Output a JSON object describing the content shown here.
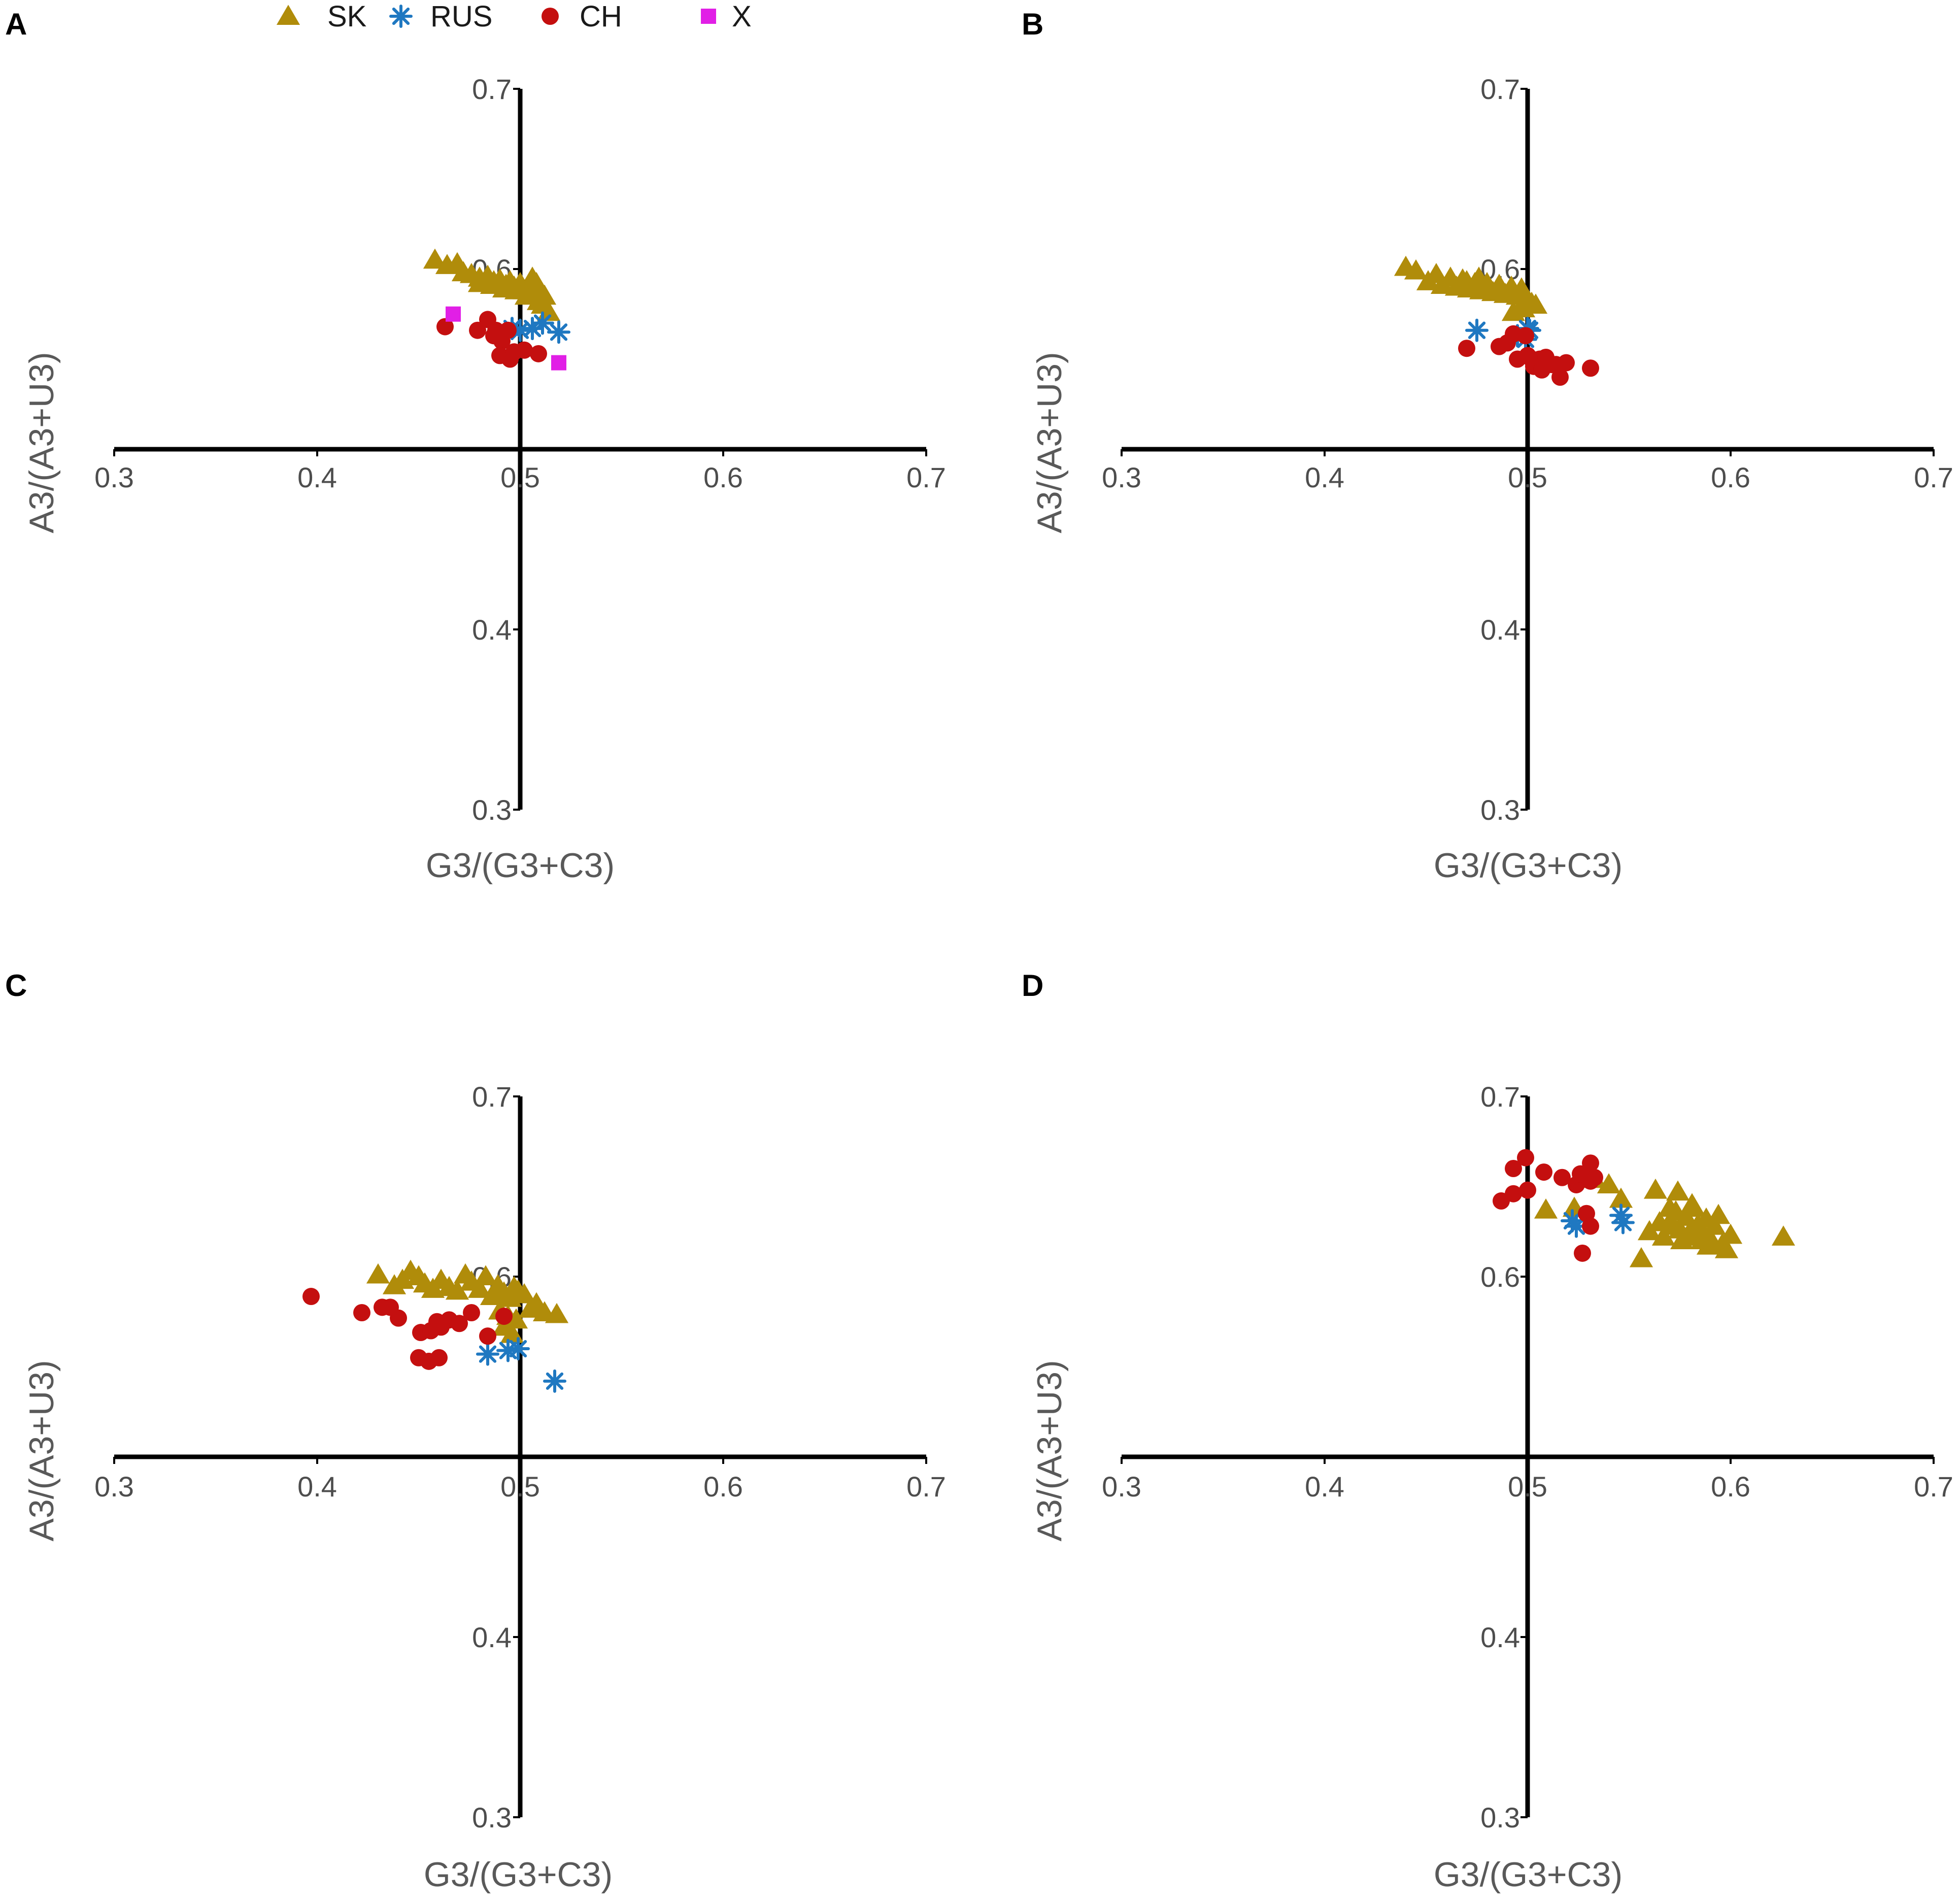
{
  "legend": [
    {
      "key": "SK",
      "label": "SK",
      "color": "#B08C0A",
      "shape": "triangle"
    },
    {
      "key": "RUS",
      "label": "RUS",
      "color": "#1F78C1",
      "shape": "asterisk"
    },
    {
      "key": "CH",
      "label": "CH",
      "color": "#C40F0F",
      "shape": "circle"
    },
    {
      "key": "X",
      "label": "X",
      "color": "#E11FE6",
      "shape": "square"
    }
  ],
  "chart_data": [
    {
      "panel": "A",
      "type": "scatter",
      "xlabel": "G3/(G3+C3)",
      "ylabel": "A3/(A3+U3)",
      "xlim": [
        0.3,
        0.7
      ],
      "ylim": [
        0.3,
        0.7
      ],
      "xticks": [
        "0.3",
        "0.4",
        "0.5",
        "0.6",
        "0.7"
      ],
      "yticks": [
        "0.3",
        "0.4",
        "0.6",
        "0.7"
      ],
      "axes_cross": [
        0.5,
        0.5
      ],
      "series": [
        {
          "name": "SK",
          "points": [
            [
              0.458,
              0.605
            ],
            [
              0.464,
              0.602
            ],
            [
              0.469,
              0.603
            ],
            [
              0.472,
              0.598
            ],
            [
              0.476,
              0.597
            ],
            [
              0.48,
              0.595
            ],
            [
              0.484,
              0.596
            ],
            [
              0.487,
              0.593
            ],
            [
              0.49,
              0.594
            ],
            [
              0.493,
              0.591
            ],
            [
              0.495,
              0.593
            ],
            [
              0.497,
              0.59
            ],
            [
              0.5,
              0.592
            ],
            [
              0.502,
              0.588
            ],
            [
              0.504,
              0.59
            ],
            [
              0.506,
              0.595
            ],
            [
              0.508,
              0.592
            ],
            [
              0.51,
              0.588
            ],
            [
              0.512,
              0.585
            ],
            [
              0.507,
              0.586
            ],
            [
              0.498,
              0.588
            ],
            [
              0.492,
              0.589
            ],
            [
              0.486,
              0.591
            ],
            [
              0.48,
              0.592
            ],
            [
              0.511,
              0.58
            ],
            [
              0.514,
              0.576
            ],
            [
              0.509,
              0.582
            ],
            [
              0.503,
              0.585
            ]
          ]
        },
        {
          "name": "RUS",
          "points": [
            [
              0.496,
              0.567
            ],
            [
              0.5,
              0.566
            ],
            [
              0.506,
              0.567
            ],
            [
              0.511,
              0.57
            ],
            [
              0.519,
              0.565
            ]
          ]
        },
        {
          "name": "CH",
          "points": [
            [
              0.463,
              0.568
            ],
            [
              0.479,
              0.566
            ],
            [
              0.484,
              0.572
            ],
            [
              0.488,
              0.566
            ],
            [
              0.491,
              0.56
            ],
            [
              0.494,
              0.566
            ],
            [
              0.49,
              0.552
            ],
            [
              0.495,
              0.55
            ],
            [
              0.497,
              0.554
            ],
            [
              0.502,
              0.555
            ],
            [
              0.487,
              0.563
            ],
            [
              0.509,
              0.553
            ]
          ]
        },
        {
          "name": "X",
          "points": [
            [
              0.467,
              0.575
            ],
            [
              0.519,
              0.548
            ]
          ]
        }
      ]
    },
    {
      "panel": "B",
      "type": "scatter",
      "xlabel": "G3/(G3+C3)",
      "ylabel": "A3/(A3+U3)",
      "xlim": [
        0.3,
        0.7
      ],
      "ylim": [
        0.3,
        0.7
      ],
      "xticks": [
        "0.3",
        "0.4",
        "0.5",
        "0.6",
        "0.7"
      ],
      "yticks": [
        "0.3",
        "0.4",
        "0.6",
        "0.7"
      ],
      "axes_cross": [
        0.5,
        0.5
      ],
      "series": [
        {
          "name": "SK",
          "points": [
            [
              0.44,
              0.601
            ],
            [
              0.445,
              0.599
            ],
            [
              0.451,
              0.593
            ],
            [
              0.455,
              0.597
            ],
            [
              0.458,
              0.591
            ],
            [
              0.462,
              0.595
            ],
            [
              0.465,
              0.59
            ],
            [
              0.468,
              0.594
            ],
            [
              0.471,
              0.589
            ],
            [
              0.474,
              0.592
            ],
            [
              0.477,
              0.588
            ],
            [
              0.48,
              0.592
            ],
            [
              0.483,
              0.587
            ],
            [
              0.486,
              0.591
            ],
            [
              0.489,
              0.586
            ],
            [
              0.492,
              0.59
            ],
            [
              0.495,
              0.585
            ],
            [
              0.497,
              0.589
            ],
            [
              0.499,
              0.583
            ],
            [
              0.502,
              0.581
            ],
            [
              0.504,
              0.58
            ],
            [
              0.493,
              0.576
            ],
            [
              0.498,
              0.578
            ],
            [
              0.47,
              0.593
            ],
            [
              0.476,
              0.595
            ]
          ]
        },
        {
          "name": "RUS",
          "points": [
            [
              0.475,
              0.566
            ],
            [
              0.495,
              0.563
            ],
            [
              0.5,
              0.567
            ],
            [
              0.501,
              0.566
            ],
            [
              0.499,
              0.561
            ]
          ]
        },
        {
          "name": "CH",
          "points": [
            [
              0.47,
              0.556
            ],
            [
              0.486,
              0.557
            ],
            [
              0.49,
              0.559
            ],
            [
              0.493,
              0.564
            ],
            [
              0.495,
              0.55
            ],
            [
              0.5,
              0.552
            ],
            [
              0.502,
              0.55
            ],
            [
              0.506,
              0.55
            ],
            [
              0.509,
              0.551
            ],
            [
              0.512,
              0.547
            ],
            [
              0.514,
              0.547
            ],
            [
              0.519,
              0.548
            ],
            [
              0.516,
              0.54
            ],
            [
              0.531,
              0.545
            ],
            [
              0.499,
              0.563
            ],
            [
              0.503,
              0.546
            ],
            [
              0.507,
              0.544
            ]
          ]
        }
      ]
    },
    {
      "panel": "C",
      "type": "scatter",
      "xlabel": "G3/(G3+C3)",
      "ylabel": "A3/(A3+U3)",
      "xlim": [
        0.3,
        0.7
      ],
      "ylim": [
        0.3,
        0.7
      ],
      "xticks": [
        "0.3",
        "0.4",
        "0.5",
        "0.6",
        "0.7"
      ],
      "yticks": [
        "0.3",
        "0.4",
        "0.6",
        "0.7"
      ],
      "axes_cross": [
        0.5,
        0.5
      ],
      "series": [
        {
          "name": "SK",
          "points": [
            [
              0.43,
              0.601
            ],
            [
              0.438,
              0.595
            ],
            [
              0.442,
              0.598
            ],
            [
              0.446,
              0.603
            ],
            [
              0.45,
              0.6
            ],
            [
              0.453,
              0.596
            ],
            [
              0.457,
              0.593
            ],
            [
              0.461,
              0.598
            ],
            [
              0.465,
              0.594
            ],
            [
              0.469,
              0.592
            ],
            [
              0.473,
              0.601
            ],
            [
              0.476,
              0.597
            ],
            [
              0.48,
              0.593
            ],
            [
              0.483,
              0.6
            ],
            [
              0.486,
              0.589
            ],
            [
              0.489,
              0.595
            ],
            [
              0.492,
              0.591
            ],
            [
              0.495,
              0.588
            ],
            [
              0.497,
              0.594
            ],
            [
              0.499,
              0.592
            ],
            [
              0.502,
              0.59
            ],
            [
              0.49,
              0.581
            ],
            [
              0.494,
              0.578
            ],
            [
              0.498,
              0.576
            ],
            [
              0.505,
              0.582
            ],
            [
              0.508,
              0.585
            ],
            [
              0.512,
              0.58
            ],
            [
              0.518,
              0.579
            ],
            [
              0.492,
              0.572
            ],
            [
              0.496,
              0.568
            ]
          ]
        },
        {
          "name": "RUS",
          "points": [
            [
              0.484,
              0.557
            ],
            [
              0.494,
              0.559
            ],
            [
              0.499,
              0.56
            ],
            [
              0.517,
              0.542
            ]
          ]
        },
        {
          "name": "CH",
          "points": [
            [
              0.397,
              0.589
            ],
            [
              0.422,
              0.58
            ],
            [
              0.432,
              0.583
            ],
            [
              0.436,
              0.583
            ],
            [
              0.44,
              0.577
            ],
            [
              0.451,
              0.569
            ],
            [
              0.456,
              0.57
            ],
            [
              0.459,
              0.575
            ],
            [
              0.461,
              0.572
            ],
            [
              0.465,
              0.576
            ],
            [
              0.47,
              0.574
            ],
            [
              0.476,
              0.58
            ],
            [
              0.484,
              0.567
            ],
            [
              0.492,
              0.578
            ],
            [
              0.45,
              0.555
            ],
            [
              0.455,
              0.553
            ],
            [
              0.46,
              0.555
            ]
          ]
        }
      ]
    },
    {
      "panel": "D",
      "type": "scatter",
      "xlabel": "G3/(G3+C3)",
      "ylabel": "A3/(A3+U3)",
      "xlim": [
        0.3,
        0.7
      ],
      "ylim": [
        0.3,
        0.7
      ],
      "xticks": [
        "0.3",
        "0.4",
        "0.5",
        "0.6",
        "0.7"
      ],
      "yticks": [
        "0.3",
        "0.4",
        "0.6",
        "0.7"
      ],
      "axes_cross": [
        0.5,
        0.5
      ],
      "series": [
        {
          "name": "SK",
          "points": [
            [
              0.509,
              0.637
            ],
            [
              0.523,
              0.638
            ],
            [
              0.533,
              0.654
            ],
            [
              0.54,
              0.651
            ],
            [
              0.546,
              0.643
            ],
            [
              0.556,
              0.61
            ],
            [
              0.56,
              0.625
            ],
            [
              0.563,
              0.648
            ],
            [
              0.565,
              0.63
            ],
            [
              0.567,
              0.622
            ],
            [
              0.57,
              0.638
            ],
            [
              0.572,
              0.628
            ],
            [
              0.574,
              0.647
            ],
            [
              0.576,
              0.62
            ],
            [
              0.578,
              0.633
            ],
            [
              0.58,
              0.625
            ],
            [
              0.582,
              0.638
            ],
            [
              0.584,
              0.629
            ],
            [
              0.586,
              0.62
            ],
            [
              0.588,
              0.632
            ],
            [
              0.59,
              0.621
            ],
            [
              0.592,
              0.628
            ],
            [
              0.594,
              0.634
            ],
            [
              0.596,
              0.618
            ],
            [
              0.598,
              0.615
            ],
            [
              0.6,
              0.623
            ],
            [
              0.626,
              0.622
            ],
            [
              0.57,
              0.63
            ],
            [
              0.575,
              0.626
            ],
            [
              0.579,
              0.622
            ],
            [
              0.585,
              0.624
            ],
            [
              0.589,
              0.617
            ],
            [
              0.581,
              0.64
            ],
            [
              0.573,
              0.636
            ]
          ]
        },
        {
          "name": "RUS",
          "points": [
            [
              0.522,
              0.631
            ],
            [
              0.524,
              0.628
            ],
            [
              0.546,
              0.634
            ],
            [
              0.547,
              0.63
            ]
          ]
        },
        {
          "name": "CH",
          "points": [
            [
              0.487,
              0.642
            ],
            [
              0.493,
              0.66
            ],
            [
              0.493,
              0.646
            ],
            [
              0.499,
              0.666
            ],
            [
              0.5,
              0.648
            ],
            [
              0.508,
              0.658
            ],
            [
              0.517,
              0.655
            ],
            [
              0.524,
              0.651
            ],
            [
              0.526,
              0.657
            ],
            [
              0.527,
              0.613
            ],
            [
              0.529,
              0.635
            ],
            [
              0.531,
              0.653
            ],
            [
              0.531,
              0.663
            ],
            [
              0.531,
              0.628
            ],
            [
              0.533,
              0.655
            ]
          ]
        }
      ]
    }
  ]
}
